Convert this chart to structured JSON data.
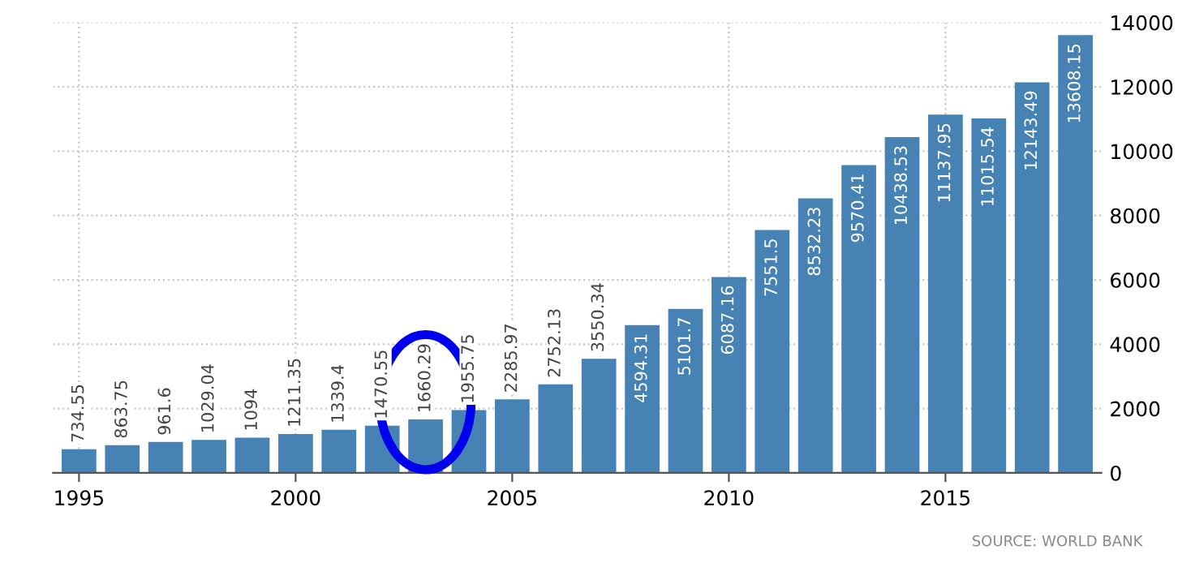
{
  "chart_data": {
    "type": "bar",
    "x": [
      1995,
      1996,
      1997,
      1998,
      1999,
      2000,
      2001,
      2002,
      2003,
      2004,
      2005,
      2006,
      2007,
      2008,
      2009,
      2010,
      2011,
      2012,
      2013,
      2014,
      2015,
      2016,
      2017,
      2018
    ],
    "values": [
      734.55,
      863.75,
      961.6,
      1029.04,
      1094,
      1211.35,
      1339.4,
      1470.55,
      1660.29,
      1955.75,
      2285.97,
      2752.13,
      3550.34,
      4594.31,
      5101.7,
      6087.16,
      7551.5,
      8532.23,
      9570.41,
      10438.53,
      11137.95,
      11015.54,
      12143.49,
      13608.15
    ],
    "color": "#4682b4",
    "xlim": [
      1994.4,
      2018.6
    ],
    "xticks": [
      1995,
      2000,
      2005,
      2010,
      2015
    ],
    "ylim": [
      0,
      14000
    ],
    "yticks": [
      0,
      2000,
      4000,
      6000,
      8000,
      10000,
      12000,
      14000
    ],
    "grid": true,
    "data_labels": true,
    "annotations": [
      "SOURCE: WORLD BANK"
    ]
  }
}
